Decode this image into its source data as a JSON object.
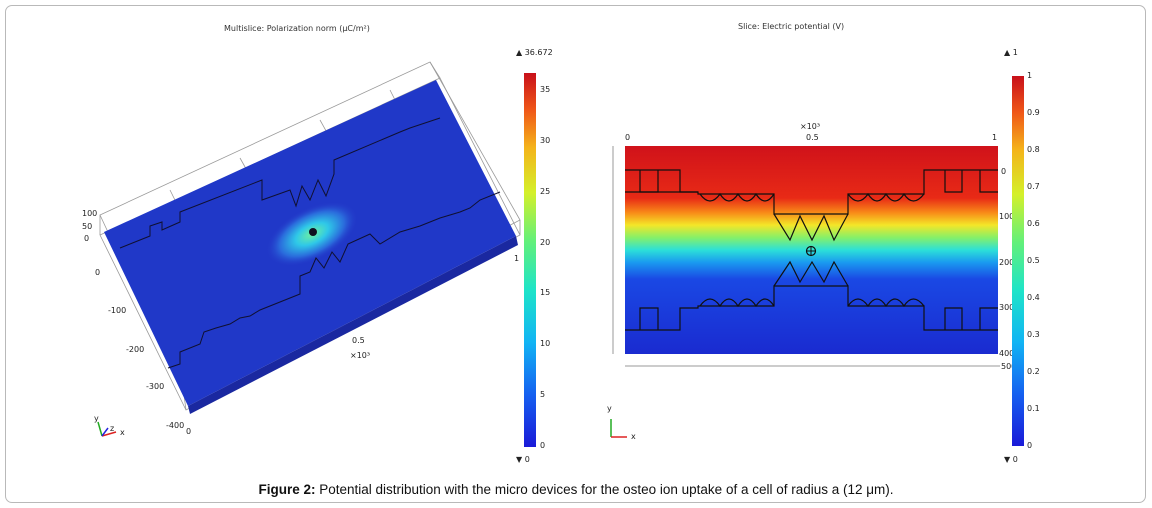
{
  "figure": {
    "caption_label": "Figure 2:",
    "caption_text": " Potential distribution with the micro devices for the osteo ion uptake of a cell of radius a (12 μm)."
  },
  "left_panel": {
    "title": "Multislice: Polarization norm (μC/m²)",
    "colorbar_max": "▲ 36.672",
    "colorbar_min": "▼ 0",
    "colorbar_ticks": [
      "35",
      "30",
      "25",
      "20",
      "15",
      "10",
      "5",
      "0"
    ],
    "axis_scale": "×10³",
    "axis_labels": {
      "z_vals": [
        "100",
        "50",
        "0"
      ],
      "y_vals": [
        "0",
        "-100",
        "-200",
        "-300",
        "-400"
      ],
      "x_vals": [
        "0",
        "0.5",
        "1"
      ]
    },
    "triad": {
      "y": "y",
      "z": "z",
      "x": "x"
    }
  },
  "right_panel": {
    "title": "Slice: Electric potential (V)",
    "colorbar_max": "▲ 1",
    "colorbar_min": "▼ 0",
    "colorbar_ticks": [
      "1",
      "0.9",
      "0.8",
      "0.7",
      "0.6",
      "0.5",
      "0.4",
      "0.3",
      "0.2",
      "0.1",
      "0"
    ],
    "axis_scale": "×10³",
    "x_ticks": [
      "0",
      "0.5",
      "1"
    ],
    "y_ticks": [
      "0",
      "100",
      "200",
      "300",
      "400",
      "500"
    ],
    "triad": {
      "y": "y",
      "x": "x"
    }
  },
  "colors": {
    "jet_red": "#d0121a",
    "jet_blue": "#1a2bd0",
    "frame": "#b9b9b9"
  }
}
